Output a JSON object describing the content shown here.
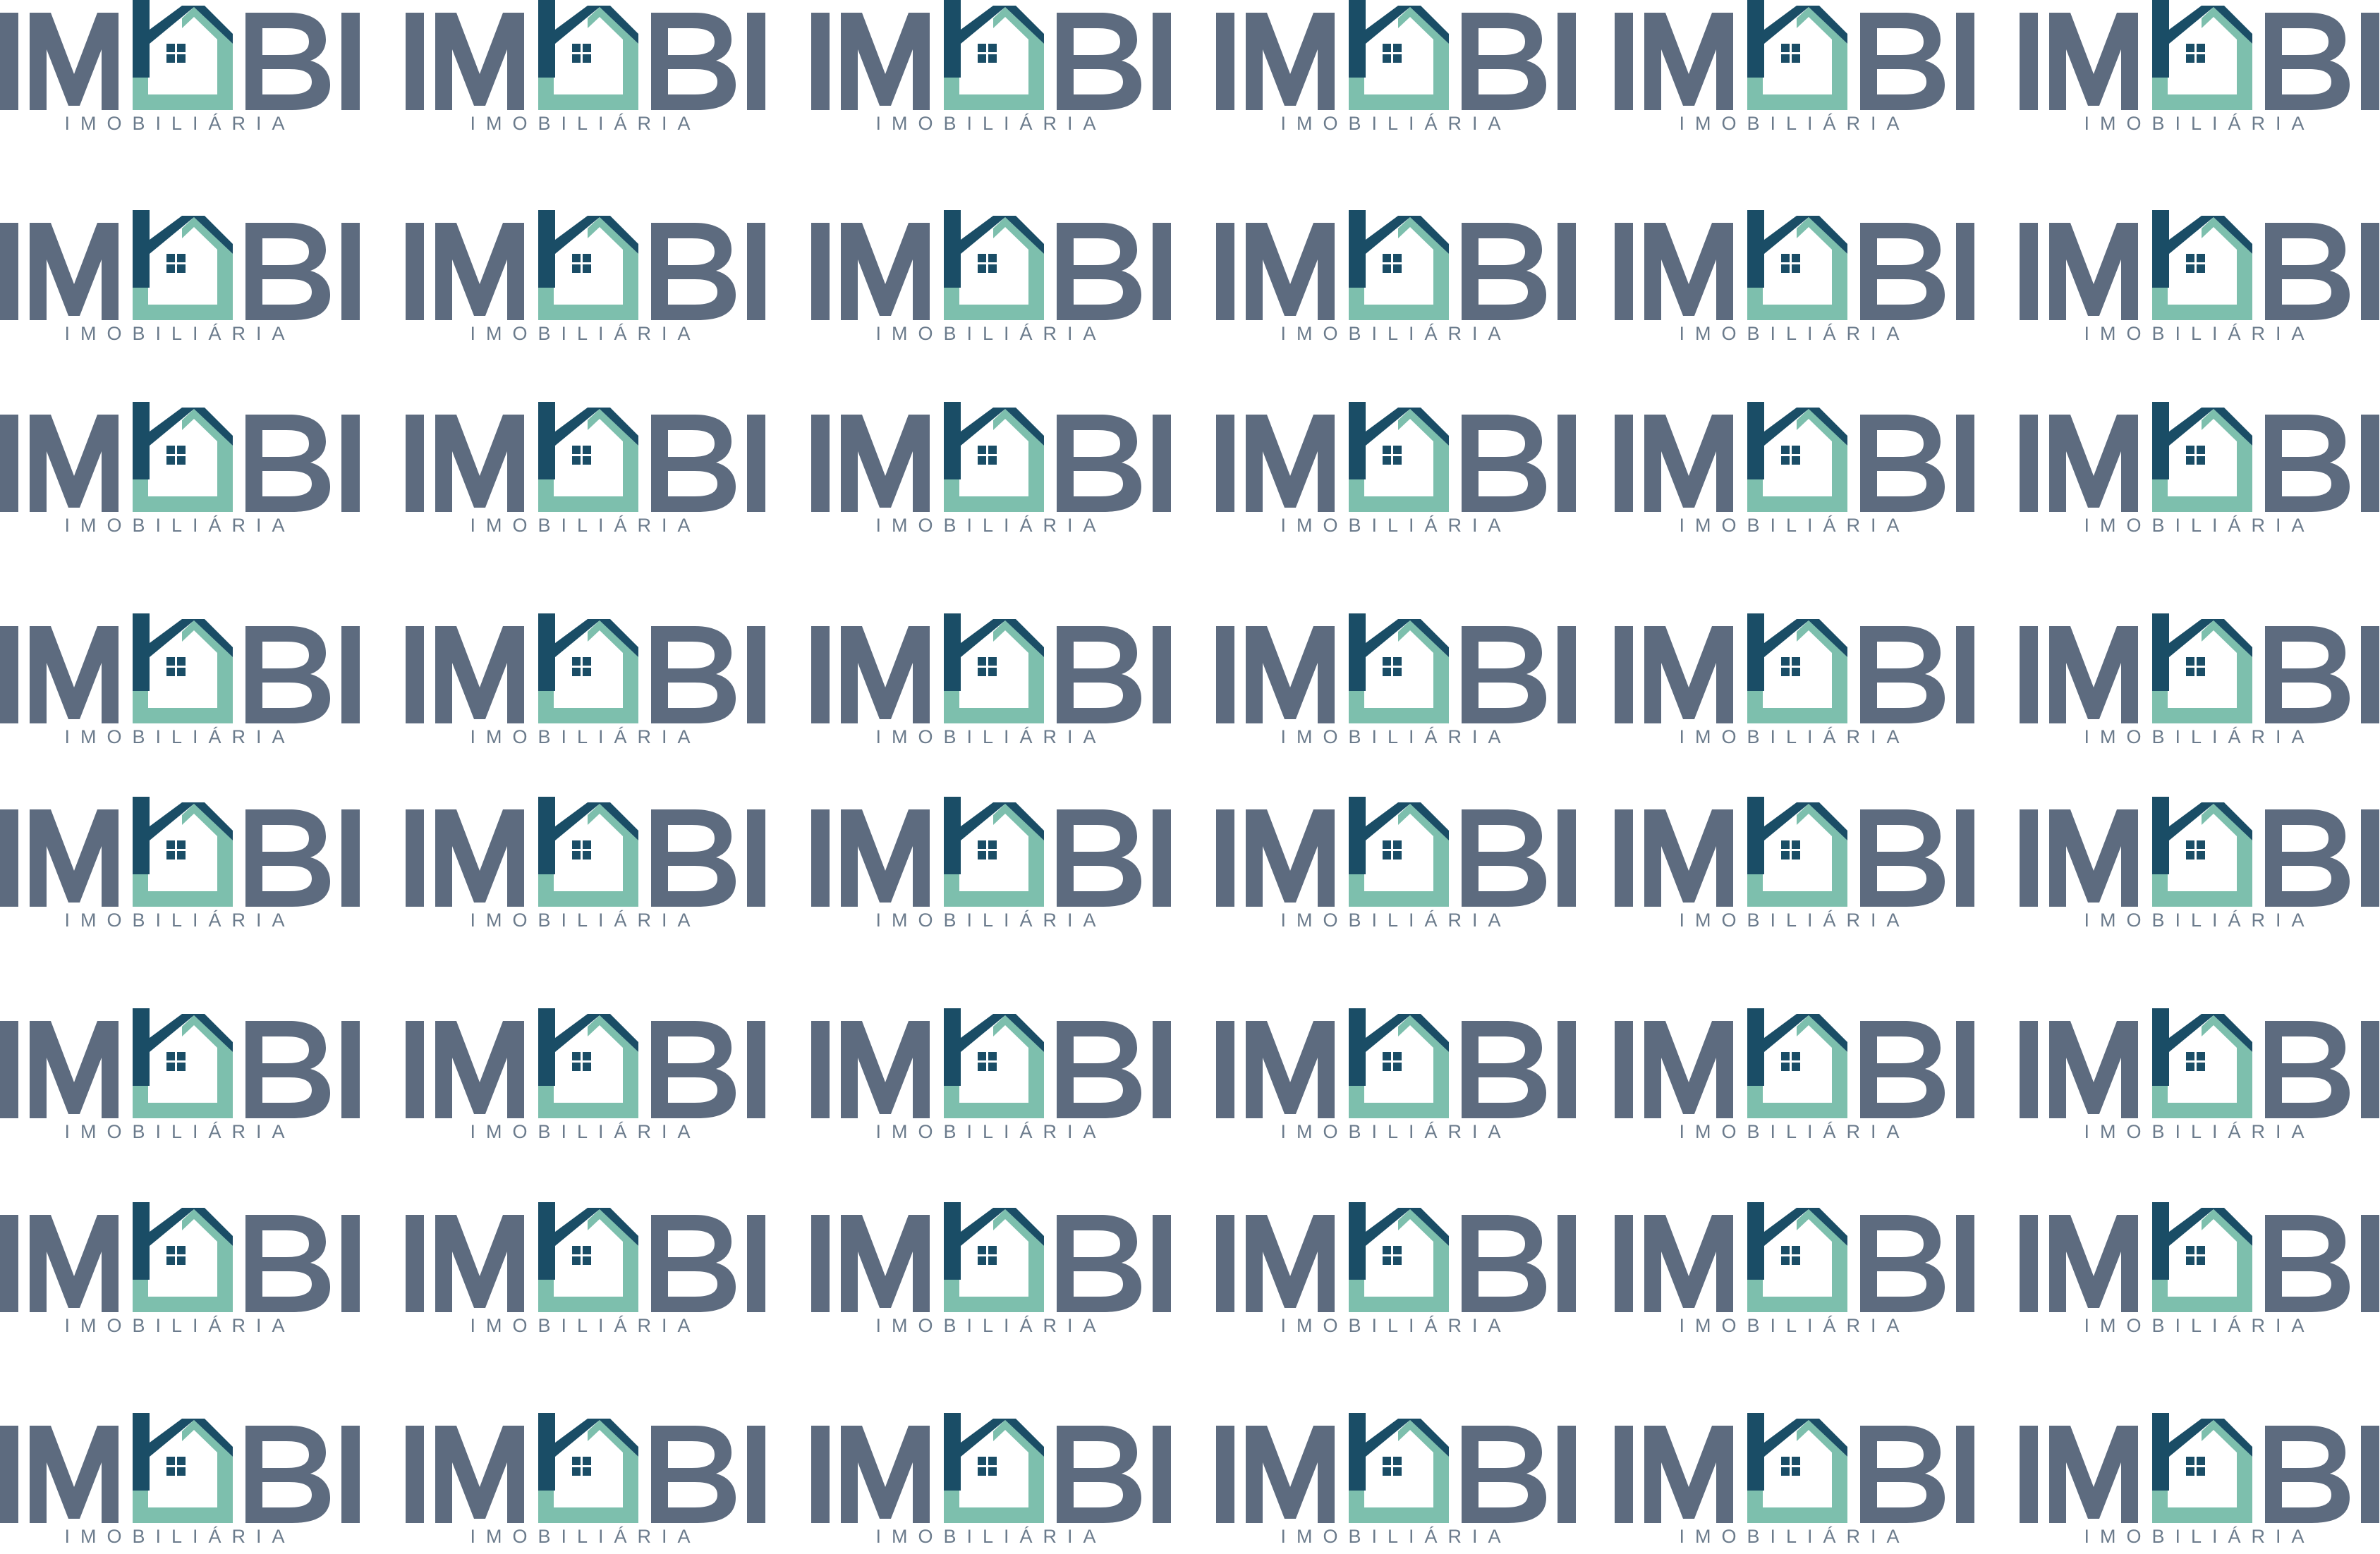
{
  "logo": {
    "wordmark_left": "IM",
    "wordmark_right": "BI",
    "tagline": "IMOBILIÁRIA",
    "colors": {
      "letters": "#5d6b7f",
      "roof_dark": "#1a4d66",
      "house_teal": "#7dbfad",
      "tagline": "#6b7b8c",
      "background": "#ffffff"
    },
    "icon": "house-icon"
  },
  "pattern": {
    "columns": 6,
    "rows": 8
  }
}
